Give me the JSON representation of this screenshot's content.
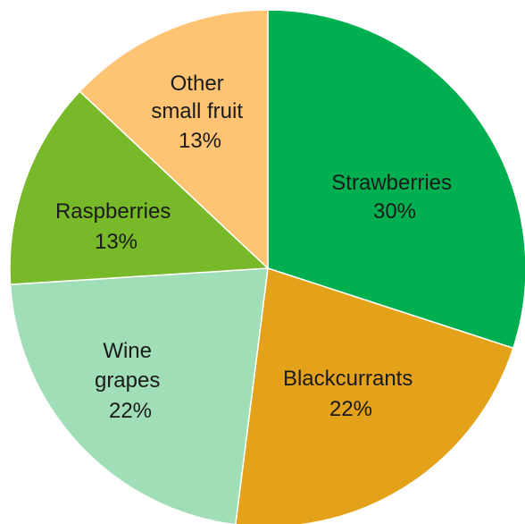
{
  "chart_data": {
    "type": "pie",
    "title": "",
    "slices": [
      {
        "label": "Strawberries",
        "value": 30,
        "value_label": "30%",
        "color": "#00b050"
      },
      {
        "label": "Blackcurrants",
        "value": 22,
        "value_label": "22%",
        "color": "#e3a21a"
      },
      {
        "label": "Wine grapes",
        "value": 22,
        "value_label": "22%",
        "color": "#9fdeb6"
      },
      {
        "label": "Raspberries",
        "value": 13,
        "value_label": "13%",
        "color": "#77b928"
      },
      {
        "label": "Other small fruit",
        "value": 13,
        "value_label": "13%",
        "color": "#ffc374"
      }
    ],
    "start": "12 o'clock",
    "direction": "clockwise",
    "legend": "none",
    "data_labels": "inside slices"
  }
}
